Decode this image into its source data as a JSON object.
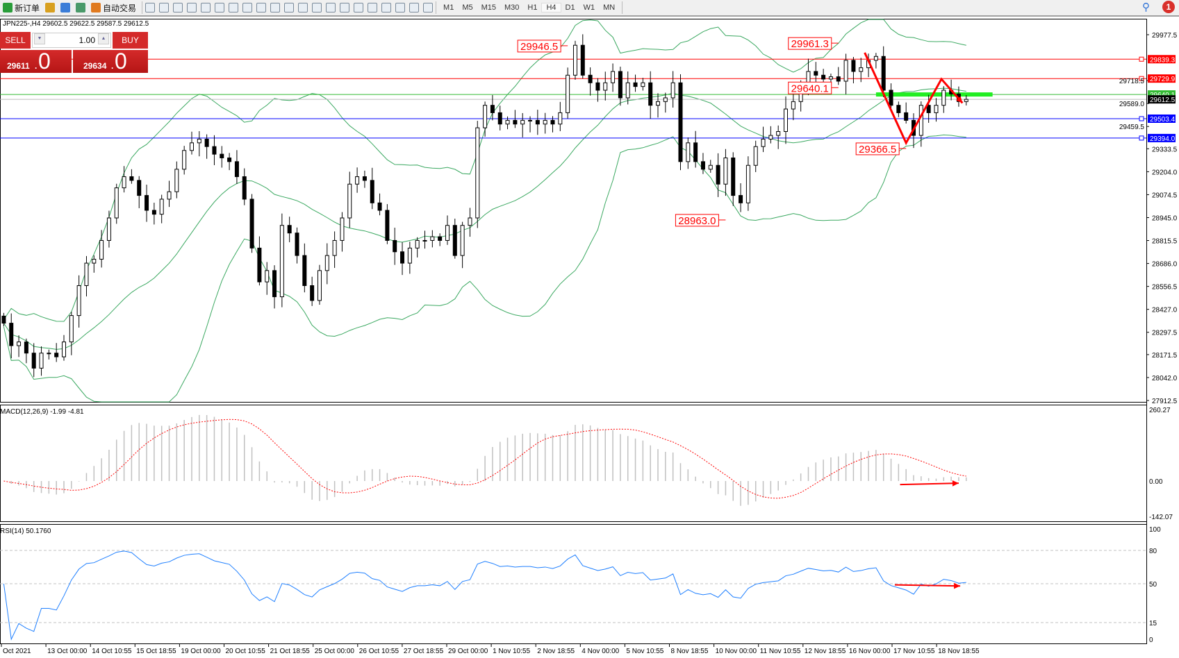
{
  "toolbar": {
    "items": [
      {
        "label": "新订单",
        "icon": "new-order-icon"
      },
      {
        "label": "",
        "icon": "gold-icon"
      },
      {
        "label": "",
        "icon": "terminal-icon"
      },
      {
        "label": "",
        "icon": "signal-icon"
      },
      {
        "label": "自动交易",
        "icon": "autotrading-icon"
      }
    ],
    "tools": [
      "bar-chart-icon",
      "candlestick-icon",
      "line-chart-icon",
      "zoom-in-icon",
      "zoom-out-icon",
      "tile-windows-icon",
      "autoscroll-icon",
      "chart-shift-icon",
      "indicators-icon",
      "periods-icon",
      "templates-icon",
      "cursor-icon",
      "crosshair-icon",
      "vertical-line-icon",
      "horizontal-line-icon",
      "trendline-icon",
      "equidistant-channel-icon",
      "fibonacci-icon",
      "text-icon",
      "text-label-icon",
      "arrows-icon"
    ],
    "timeframes": [
      "M1",
      "M5",
      "M15",
      "M30",
      "H1",
      "H4",
      "D1",
      "W1",
      "MN"
    ],
    "active_timeframe": "H4",
    "notifications": "1"
  },
  "chart_header": "JPN225-,H4  29602.5 29622.5 29587.5 29612.5",
  "trade_panel": {
    "sell_label": "SELL",
    "buy_label": "BUY",
    "lot": "1.00",
    "sell_main": "29611",
    "sell_big": "0",
    "buy_main": "29634",
    "buy_big": "0"
  },
  "chart_data": {
    "type": "candlestick",
    "symbol": "JPN225-",
    "timeframe": "H4",
    "close": [
      28349,
      28222,
      28243,
      28180,
      28095,
      28180,
      28180,
      28159,
      28243,
      28392,
      28561,
      28688,
      28710,
      28816,
      28943,
      29113,
      29176,
      29155,
      29070,
      28986,
      28964,
      29049,
      29091,
      29218,
      29324,
      29367,
      29388,
      29346,
      29303,
      29282,
      29261,
      29176,
      29049,
      28773,
      28582,
      28646,
      28498,
      28901,
      28858,
      28731,
      28561,
      28477,
      28646,
      28731,
      28816,
      28943,
      29134,
      29176,
      29155,
      29028,
      28986,
      28816,
      28752,
      28688,
      28773,
      28816,
      28816,
      28837,
      28816,
      28901,
      28731,
      28901,
      28943,
      29452,
      29579,
      29537,
      29473,
      29494,
      29473,
      29494,
      29494,
      29473,
      29494,
      29473,
      29537,
      29749,
      29918,
      29749,
      29706,
      29664,
      29706,
      29770,
      29621,
      29706,
      29685,
      29706,
      29579,
      29600,
      29621,
      29706,
      29261,
      29367,
      29261,
      29218,
      29240,
      29134,
      29282,
      29070,
      29028,
      29240,
      29346,
      29388,
      29409,
      29431,
      29558,
      29600,
      29685,
      29770,
      29749,
      29727,
      29740,
      29715,
      29833,
      29770,
      29791,
      29833,
      29855,
      29664,
      29579,
      29537,
      29494,
      29409,
      29579,
      29537,
      29579,
      29664,
      29643,
      29600,
      29612.5
    ],
    "ylim": [
      27912.5,
      29977.5
    ],
    "price_ticks": [
      "29977.5",
      "29718.5",
      "29589.0",
      "29459.5",
      "29333.5",
      "29204.0",
      "29074.5",
      "28945.0",
      "28815.5",
      "28686.0",
      "28556.5",
      "28427.0",
      "28297.5",
      "28171.5",
      "28042.0",
      "27912.5"
    ],
    "time_labels": [
      "Oct 2021",
      "13 Oct 00:00",
      "14 Oct 10:55",
      "15 Oct 18:55",
      "19 Oct 00:00",
      "20 Oct 10:55",
      "21 Oct 18:55",
      "25 Oct 00:00",
      "26 Oct 10:55",
      "27 Oct 18:55",
      "29 Oct 00:00",
      "1 Nov 10:55",
      "2 Nov 18:55",
      "4 Nov 00:00",
      "5 Nov 10:55",
      "8 Nov 18:55",
      "10 Nov 00:00",
      "11 Nov 10:55",
      "12 Nov 18:55",
      "16 Nov 00:00",
      "17 Nov 10:55",
      "18 Nov 18:55"
    ],
    "levels": [
      {
        "price": 29839.3,
        "label": "29839.3",
        "color": "#ff0000"
      },
      {
        "price": 29729.9,
        "label": "29729.9",
        "color": "#ff0000"
      },
      {
        "price": 29640.1,
        "label": "29640.1",
        "color": "#33bb33"
      },
      {
        "price": 29612.5,
        "label": "29612.5",
        "color": "#000000",
        "bid": true
      },
      {
        "price": 29503.4,
        "label": "29503.4",
        "color": "#0000ff"
      },
      {
        "price": 29394.0,
        "label": "29394.0",
        "color": "#0000ff"
      }
    ],
    "annotations": [
      {
        "label": "29946.5",
        "bar": 75,
        "price": 29946.5
      },
      {
        "label": "29961.3",
        "bar": 111,
        "price": 29961.3
      },
      {
        "label": "29640.1",
        "bar": 111,
        "price": 29710
      },
      {
        "label": "29366.5",
        "bar": 120,
        "price": 29366.5
      },
      {
        "label": "28963.0",
        "bar": 96,
        "price": 28963.0
      }
    ],
    "green_zone": {
      "price": 29640.1,
      "from_bar": 116,
      "to_bar": 131.5,
      "color": "#22ee22"
    },
    "zigzag": [
      [
        114.5,
        29876
      ],
      [
        120,
        29366.5
      ],
      [
        124.7,
        29727
      ],
      [
        127.5,
        29592
      ]
    ],
    "bollinger": {
      "period": 20,
      "deviation": 2,
      "color": "#3aa860"
    },
    "macd": {
      "label": "MACD(12,26,9) -1.99 -4.81",
      "ylim": [
        -142.07,
        260.27
      ],
      "ticks": [
        "260.27",
        "0.00",
        "-142.07"
      ],
      "arrow": [
        [
          119.2,
          -13
        ],
        [
          127,
          -8
        ]
      ]
    },
    "rsi": {
      "label": "RSI(14) 50.1760",
      "levels": [
        80,
        50,
        15
      ],
      "ticks": [
        "100",
        "80",
        "50",
        "15",
        "0"
      ],
      "color": "#1e7fff",
      "arrow": [
        [
          118.5,
          49
        ],
        [
          127.2,
          48
        ]
      ]
    },
    "bull_color": "#ffffff",
    "bear_color": "#000000",
    "arrow_color": "#ff0000"
  }
}
